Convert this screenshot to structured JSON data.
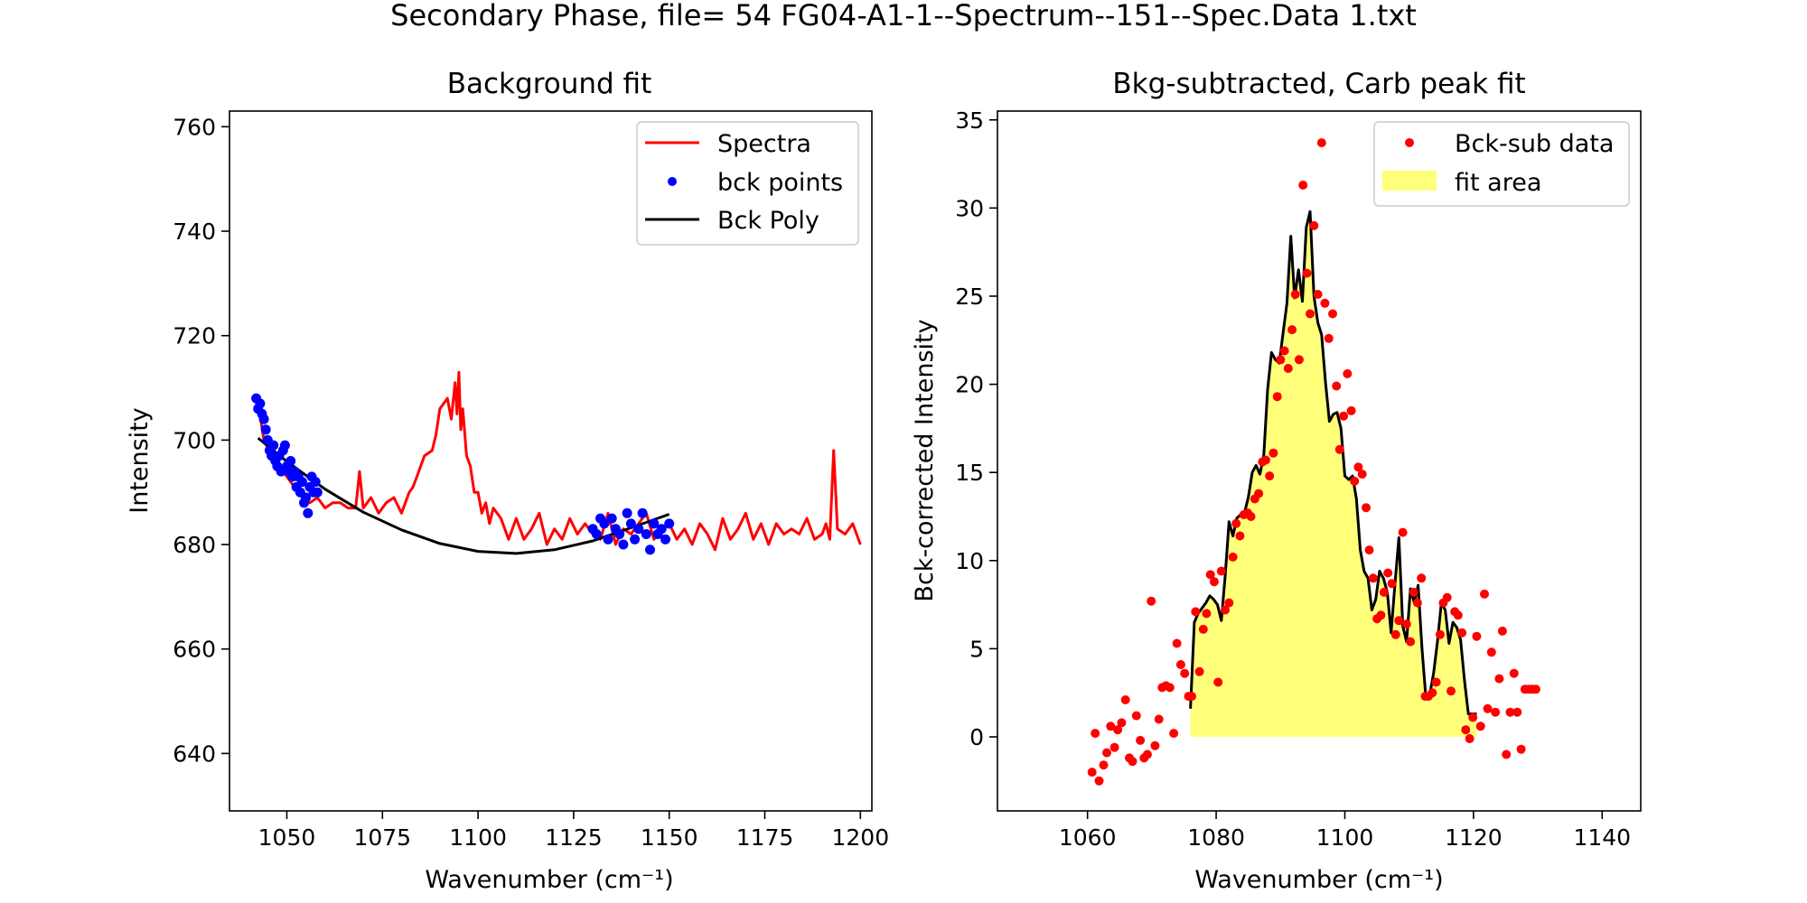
{
  "figure": {
    "suptitle": "Secondary Phase, file= 54 FG04-A1-1--Spectrum--151--Spec.Data 1.txt"
  },
  "colors": {
    "spectra": "#ff0000",
    "bck_points": "#0000ff",
    "bck_poly": "#000000",
    "fit_area": "#ffff7a",
    "bck_sub": "#ff0000"
  },
  "chart_data": [
    {
      "type": "line",
      "title": "Background fit",
      "xlabel": "Wavenumber (cm⁻¹)",
      "ylabel": "Intensity",
      "xlim": [
        1035,
        1203
      ],
      "ylim": [
        629,
        763
      ],
      "xticks": [
        1050,
        1075,
        1100,
        1125,
        1150,
        1175,
        1200
      ],
      "yticks": [
        640,
        660,
        680,
        700,
        720,
        740,
        760
      ],
      "legend": {
        "position": "top-right",
        "entries": [
          "Spectra",
          "bck points",
          "Bck Poly"
        ]
      },
      "series": [
        {
          "name": "Spectra",
          "style": "line",
          "x": [
            1042.5,
            1044,
            1046,
            1048,
            1050,
            1052,
            1054,
            1056,
            1058,
            1060,
            1062,
            1064,
            1066,
            1068,
            1069,
            1070,
            1072,
            1074,
            1076,
            1078,
            1080,
            1082,
            1083,
            1084,
            1086,
            1088,
            1089,
            1090,
            1092,
            1093,
            1094,
            1094.5,
            1095,
            1095.5,
            1096,
            1097,
            1098,
            1099,
            1100,
            1101,
            1102,
            1103,
            1104,
            1106,
            1108,
            1110,
            1112,
            1114,
            1116,
            1118,
            1120,
            1122,
            1124,
            1126,
            1128,
            1130,
            1132,
            1134,
            1136,
            1138,
            1140,
            1142,
            1144,
            1146,
            1148,
            1150,
            1152,
            1154,
            1156,
            1158,
            1160,
            1162,
            1164,
            1166,
            1168,
            1170,
            1172,
            1174,
            1176,
            1178,
            1180,
            1182,
            1184,
            1186,
            1188,
            1190,
            1191,
            1192,
            1193,
            1194,
            1196,
            1198,
            1200
          ],
          "y": [
            707,
            700,
            697,
            695,
            693,
            691,
            689,
            688,
            689,
            687,
            688,
            688,
            687,
            687,
            694,
            687,
            689,
            686,
            688,
            689,
            686,
            690,
            691,
            693,
            697,
            698,
            701,
            706,
            708,
            704,
            711,
            705,
            713,
            702,
            706,
            697,
            695,
            690,
            690,
            686,
            688,
            684,
            687,
            685,
            681,
            685,
            681,
            683,
            686,
            680,
            683,
            681,
            685,
            682,
            684,
            682,
            681,
            686,
            680,
            683,
            682,
            684,
            686,
            681,
            683,
            684,
            681,
            683,
            680,
            684,
            682,
            679,
            685,
            681,
            683,
            686,
            681,
            684,
            680,
            684,
            682,
            683,
            682,
            685,
            681,
            682,
            684,
            681,
            698,
            683,
            682,
            684,
            680
          ]
        },
        {
          "name": "bck points",
          "style": "markers",
          "x": [
            1042,
            1042.5,
            1043,
            1043.5,
            1044,
            1044.5,
            1045,
            1045.5,
            1046,
            1046.5,
            1047,
            1047.5,
            1048,
            1048.5,
            1049,
            1049.5,
            1050,
            1050.5,
            1051,
            1051.5,
            1052,
            1052.5,
            1053,
            1053.5,
            1054,
            1054.5,
            1055,
            1055.5,
            1056,
            1056.5,
            1057,
            1057.5,
            1058,
            1130,
            1131,
            1132,
            1133,
            1134,
            1135,
            1136,
            1137,
            1138,
            1139,
            1140,
            1141,
            1142,
            1143,
            1144,
            1145,
            1146,
            1147,
            1148,
            1149,
            1150
          ],
          "y": [
            708,
            706,
            707,
            705,
            704,
            702,
            700,
            698,
            697,
            699,
            696,
            695,
            697,
            694,
            698,
            699,
            695,
            694,
            696,
            693,
            694,
            691,
            693,
            690,
            692,
            688,
            689,
            686,
            691,
            693,
            690,
            692,
            690,
            683,
            682,
            685,
            684,
            681,
            685,
            683,
            682,
            680,
            686,
            684,
            681,
            683,
            686,
            682,
            679,
            684,
            682,
            683,
            681,
            684
          ]
        },
        {
          "name": "Bck Poly",
          "style": "line",
          "x": [
            1042.5,
            1050,
            1060,
            1070,
            1080,
            1090,
            1100,
            1110,
            1120,
            1130,
            1140,
            1150
          ],
          "y": [
            700.4,
            695.9,
            690.6,
            686.2,
            682.8,
            680.2,
            678.7,
            678.3,
            679.0,
            680.7,
            683.2,
            685.8
          ]
        }
      ]
    },
    {
      "type": "scatter",
      "title": "Bkg-subtracted, Carb peak fit",
      "xlabel": "Wavenumber (cm⁻¹)",
      "ylabel": "Bck-corrected Intensity",
      "xlim": [
        1046,
        1146
      ],
      "ylim": [
        -4.2,
        35.5
      ],
      "xticks": [
        1060,
        1080,
        1100,
        1120,
        1140
      ],
      "yticks": [
        0,
        5,
        10,
        15,
        20,
        25,
        30,
        35
      ],
      "legend": {
        "position": "top-right",
        "entries": [
          "Bck-sub data",
          "fit area"
        ]
      },
      "series": [
        {
          "name": "Bck-sub data",
          "style": "markers",
          "x": [
            1060.7,
            1061.2,
            1061.8,
            1062.5,
            1063,
            1063.6,
            1064.2,
            1064.7,
            1065.3,
            1065.9,
            1066.5,
            1067,
            1067.6,
            1068.2,
            1068.8,
            1069.3,
            1069.9,
            1070.5,
            1071.1,
            1071.6,
            1072.2,
            1072.8,
            1073.4,
            1073.9,
            1074.5,
            1075.1,
            1075.7,
            1076.2,
            1076.8,
            1077.4,
            1078,
            1078.5,
            1079.1,
            1079.7,
            1080.3,
            1080.8,
            1081.4,
            1082,
            1082.6,
            1083.1,
            1083.7,
            1084.3,
            1084.9,
            1085.4,
            1086,
            1086.6,
            1087.2,
            1087.7,
            1088.3,
            1088.9,
            1089.5,
            1090,
            1090.6,
            1091.2,
            1091.8,
            1092.3,
            1092.9,
            1093.5,
            1094.1,
            1094.6,
            1095.2,
            1095.8,
            1096.4,
            1096.9,
            1097.5,
            1098.1,
            1098.7,
            1099.2,
            1099.8,
            1100.4,
            1101,
            1101.5,
            1102.1,
            1102.7,
            1103.3,
            1103.8,
            1104.4,
            1105,
            1105.6,
            1106.1,
            1106.7,
            1107.3,
            1107.9,
            1108.4,
            1109,
            1109.6,
            1110.2,
            1110.7,
            1111.3,
            1111.9,
            1112.5,
            1113,
            1113.6,
            1114.2,
            1114.8,
            1115.3,
            1115.9,
            1116.5,
            1117.1,
            1117.6,
            1118.2,
            1118.8,
            1119.4,
            1119.9,
            1120.5,
            1121.1,
            1121.7,
            1122.2,
            1122.8,
            1123.4,
            1124,
            1124.5,
            1125.1,
            1125.7,
            1126.3,
            1126.8,
            1127.4,
            1128,
            1128.6,
            1129.1,
            1129.7
          ],
          "y": [
            -2.0,
            0.2,
            -2.5,
            -1.6,
            -0.9,
            0.6,
            -0.6,
            0.4,
            0.8,
            2.1,
            -1.2,
            -1.4,
            1.2,
            -0.2,
            -1.2,
            -1.0,
            7.7,
            -0.5,
            1.0,
            2.8,
            2.9,
            2.8,
            0.2,
            5.3,
            4.1,
            3.6,
            2.3,
            2.3,
            7.1,
            3.7,
            6.1,
            7.0,
            9.2,
            8.8,
            3.1,
            9.4,
            7.2,
            7.6,
            10.2,
            12.1,
            11.4,
            12.6,
            12.7,
            12.5,
            13.5,
            13.8,
            15.6,
            15.7,
            14.8,
            16.1,
            19.3,
            21.4,
            21.9,
            20.9,
            23.1,
            25.1,
            21.4,
            31.3,
            26.3,
            24.0,
            29.0,
            25.1,
            33.7,
            24.6,
            22.6,
            24.0,
            19.9,
            16.3,
            18.2,
            20.6,
            18.5,
            14.5,
            15.3,
            14.9,
            13.0,
            10.6,
            9.0,
            6.7,
            6.9,
            8.2,
            9.3,
            8.7,
            5.8,
            6.6,
            11.6,
            6.4,
            5.4,
            8.2,
            7.6,
            9.0,
            2.3,
            2.3,
            2.5,
            3.1,
            5.8,
            7.6,
            7.9,
            2.6,
            7.1,
            6.9,
            5.9,
            0.4,
            -0.1,
            1.1,
            5.7,
            0.6,
            8.1,
            1.6,
            4.8,
            1.4,
            3.3,
            6.0,
            -1.0,
            1.4,
            3.6,
            1.4,
            -0.7,
            2.7,
            2.7,
            2.7,
            2.7
          ]
        },
        {
          "name": "fit line",
          "style": "line",
          "x": [
            1076.0,
            1076.6,
            1077.2,
            1077.8,
            1078.4,
            1079.0,
            1079.6,
            1080.2,
            1080.8,
            1081.4,
            1082.0,
            1082.6,
            1083.2,
            1083.8,
            1084.4,
            1085.0,
            1085.6,
            1086.2,
            1086.8,
            1087.4,
            1088.0,
            1088.6,
            1089.2,
            1089.8,
            1090.4,
            1091.0,
            1091.6,
            1092.2,
            1092.8,
            1093.4,
            1094.0,
            1094.6,
            1095.2,
            1095.8,
            1096.4,
            1097.0,
            1097.6,
            1098.2,
            1098.8,
            1099.4,
            1100.0,
            1100.6,
            1101.2,
            1101.8,
            1102.4,
            1103.0,
            1103.6,
            1104.2,
            1104.8,
            1105.4,
            1106.0,
            1106.6,
            1107.2,
            1107.8,
            1108.4,
            1109.0,
            1109.6,
            1110.2,
            1110.8,
            1111.4,
            1112.0,
            1112.6,
            1113.2,
            1113.8,
            1114.4,
            1115.0,
            1115.6,
            1116.2,
            1116.8,
            1117.4,
            1118.0,
            1118.6,
            1119.2,
            1119.8,
            1120.5
          ],
          "y": [
            1.6,
            6.5,
            7.0,
            7.3,
            7.6,
            8.0,
            7.8,
            7.5,
            6.6,
            9.1,
            12.2,
            11.4,
            12.4,
            12.6,
            12.7,
            13.6,
            15.0,
            15.4,
            14.9,
            16.0,
            19.7,
            21.8,
            21.4,
            21.2,
            22.9,
            24.6,
            28.4,
            24.9,
            26.5,
            24.7,
            28.9,
            29.8,
            25.0,
            23.5,
            22.8,
            20.1,
            17.9,
            18.3,
            18.4,
            17.5,
            14.8,
            14.6,
            14.8,
            13.5,
            10.6,
            9.4,
            9.0,
            7.2,
            7.8,
            9.4,
            9.0,
            8.2,
            5.9,
            8.7,
            11.3,
            6.3,
            5.4,
            8.4,
            7.6,
            8.6,
            5.0,
            2.2,
            2.4,
            3.6,
            5.4,
            7.6,
            7.2,
            5.3,
            6.5,
            6.2,
            5.5,
            3.2,
            1.3,
            1.3,
            1.3
          ]
        },
        {
          "name": "fit area",
          "style": "fill",
          "ref": "fit line",
          "xrange": [
            1076.0,
            1120.5
          ]
        }
      ]
    }
  ]
}
